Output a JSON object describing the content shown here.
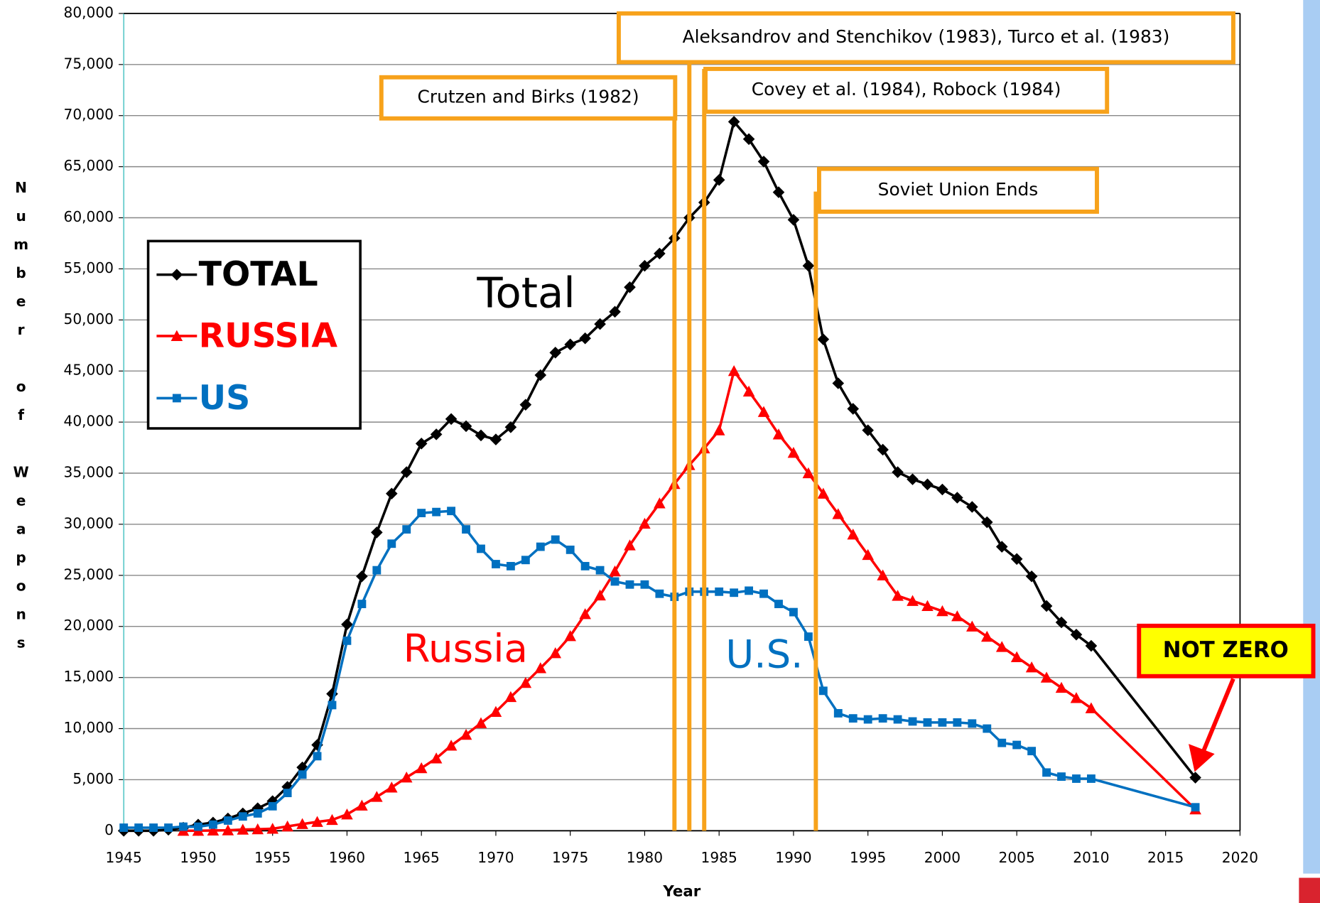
{
  "chart_data": {
    "type": "line",
    "x_label": "Year",
    "y_label": "Number of Weapons",
    "xlim": [
      1945,
      2020
    ],
    "xticks": [
      1945,
      1950,
      1955,
      1960,
      1965,
      1970,
      1975,
      1980,
      1985,
      1990,
      1995,
      2000,
      2005,
      2010,
      2015,
      2020
    ],
    "ylim": [
      0,
      80000
    ],
    "yticks": [
      0,
      {
        "value": 5000,
        "label": "5,000"
      },
      {
        "value": 10000,
        "label": "10,000"
      },
      {
        "value": 15000,
        "label": "15,000"
      },
      {
        "value": 20000,
        "label": "20,000"
      },
      {
        "value": 25000,
        "label": "25,000"
      },
      {
        "value": 30000,
        "label": "30,000"
      },
      {
        "value": 35000,
        "label": "35,000"
      },
      {
        "value": 40000,
        "label": "40,000"
      },
      {
        "value": 45000,
        "label": "45,000"
      },
      {
        "value": 50000,
        "label": "50,000"
      },
      {
        "value": 55000,
        "label": "55,000"
      },
      {
        "value": 60000,
        "label": "60,000"
      },
      {
        "value": 65000,
        "label": "65,000"
      },
      {
        "value": 70000,
        "label": "70,000"
      },
      {
        "value": 75000,
        "label": "75,000"
      },
      {
        "value": 80000,
        "label": "80,000"
      }
    ],
    "grid": true,
    "legend": "upper left",
    "series": [
      {
        "name": "TOTAL",
        "label": "Total",
        "color": "#000000",
        "marker": "diamond",
        "x": [
          1945,
          1946,
          1947,
          1948,
          1949,
          1950,
          1951,
          1952,
          1953,
          1954,
          1955,
          1956,
          1957,
          1958,
          1959,
          1960,
          1961,
          1962,
          1963,
          1964,
          1965,
          1966,
          1967,
          1968,
          1969,
          1970,
          1971,
          1972,
          1973,
          1974,
          1975,
          1976,
          1977,
          1978,
          1979,
          1980,
          1981,
          1982,
          1983,
          1984,
          1985,
          1986,
          1987,
          1988,
          1989,
          1990,
          1991,
          1992,
          1993,
          1994,
          1995,
          1996,
          1997,
          1998,
          1999,
          2000,
          2001,
          2002,
          2003,
          2004,
          2005,
          2006,
          2007,
          2008,
          2009,
          2010,
          2017
        ],
        "values": [
          0,
          0,
          0,
          100,
          300,
          600,
          800,
          1200,
          1700,
          2200,
          2900,
          4300,
          6200,
          8400,
          13400,
          20200,
          24900,
          29200,
          33000,
          35100,
          37900,
          38800,
          40300,
          39600,
          38700,
          38300,
          39500,
          41700,
          44600,
          46800,
          47600,
          48200,
          49600,
          50800,
          53200,
          55300,
          56500,
          58000,
          60000,
          61500,
          63700,
          69400,
          67700,
          65500,
          62500,
          59800,
          55300,
          48100,
          43800,
          41300,
          39200,
          37300,
          35100,
          34400,
          33900,
          33400,
          32600,
          31700,
          30200,
          27800,
          26600,
          24900,
          22000,
          20400,
          19200,
          18100,
          5200
        ]
      },
      {
        "name": "RUSSIA",
        "label": "Russia",
        "color": "#ff0000",
        "marker": "triangle",
        "x": [
          1949,
          1950,
          1951,
          1952,
          1953,
          1954,
          1955,
          1956,
          1957,
          1958,
          1959,
          1960,
          1961,
          1962,
          1963,
          1964,
          1965,
          1966,
          1967,
          1968,
          1969,
          1970,
          1971,
          1972,
          1973,
          1974,
          1975,
          1976,
          1977,
          1978,
          1979,
          1980,
          1981,
          1982,
          1983,
          1984,
          1985,
          1986,
          1987,
          1988,
          1989,
          1990,
          1991,
          1992,
          1993,
          1994,
          1995,
          1996,
          1997,
          1998,
          1999,
          2000,
          2001,
          2002,
          2003,
          2004,
          2005,
          2006,
          2007,
          2008,
          2009,
          2010,
          2017
        ],
        "values": [
          0,
          5,
          25,
          50,
          120,
          150,
          200,
          430,
          660,
          870,
          1060,
          1600,
          2470,
          3320,
          4240,
          5220,
          6130,
          7090,
          8340,
          9400,
          10540,
          11640,
          13090,
          14480,
          15920,
          17390,
          19060,
          21210,
          23040,
          25390,
          27940,
          30060,
          32050,
          33950,
          35800,
          37430,
          39200,
          45000,
          43000,
          41000,
          38800,
          37000,
          35000,
          33000,
          31000,
          29000,
          27000,
          25000,
          23000,
          22500,
          22000,
          21500,
          21000,
          20000,
          19000,
          18000,
          17000,
          16000,
          15000,
          14000,
          13000,
          12000,
          2100
        ]
      },
      {
        "name": "US",
        "label": "U.S.",
        "color": "#0070c0",
        "marker": "square",
        "x": [
          1945,
          1946,
          1947,
          1948,
          1949,
          1950,
          1951,
          1952,
          1953,
          1954,
          1955,
          1956,
          1957,
          1958,
          1959,
          1960,
          1961,
          1962,
          1963,
          1964,
          1965,
          1966,
          1967,
          1968,
          1969,
          1970,
          1971,
          1972,
          1973,
          1974,
          1975,
          1976,
          1977,
          1978,
          1979,
          1980,
          1981,
          1982,
          1983,
          1984,
          1985,
          1986,
          1987,
          1988,
          1989,
          1990,
          1991,
          1992,
          1993,
          1994,
          1995,
          1996,
          1997,
          1998,
          1999,
          2000,
          2001,
          2002,
          2003,
          2004,
          2005,
          2006,
          2007,
          2008,
          2009,
          2010,
          2017
        ],
        "values": [
          300,
          300,
          300,
          300,
          400,
          400,
          600,
          1000,
          1400,
          1700,
          2400,
          3700,
          5500,
          7300,
          12300,
          18600,
          22200,
          25500,
          28100,
          29500,
          31100,
          31200,
          31300,
          29500,
          27600,
          26100,
          25900,
          26500,
          27800,
          28500,
          27500,
          25900,
          25500,
          24400,
          24100,
          24100,
          23200,
          22900,
          23400,
          23400,
          23400,
          23300,
          23500,
          23200,
          22200,
          21400,
          19000,
          13700,
          11500,
          11000,
          10900,
          11000,
          10900,
          10700,
          10600,
          10600,
          10600,
          10500,
          10000,
          8600,
          8400,
          7800,
          5700,
          5300,
          5100,
          5100,
          2300
        ]
      }
    ],
    "annotations": [
      {
        "text": "Crutzen and Birks (1982)",
        "x": 1982
      },
      {
        "text": "Aleksandrov and Stenchikov (1983),  Turco et al. (1983)",
        "x": 1983
      },
      {
        "text": "Covey et al. (1984), Robock (1984)",
        "x": 1984
      },
      {
        "text": "Soviet Union Ends",
        "x": 1991.5
      },
      {
        "text": "NOT ZERO"
      }
    ]
  }
}
